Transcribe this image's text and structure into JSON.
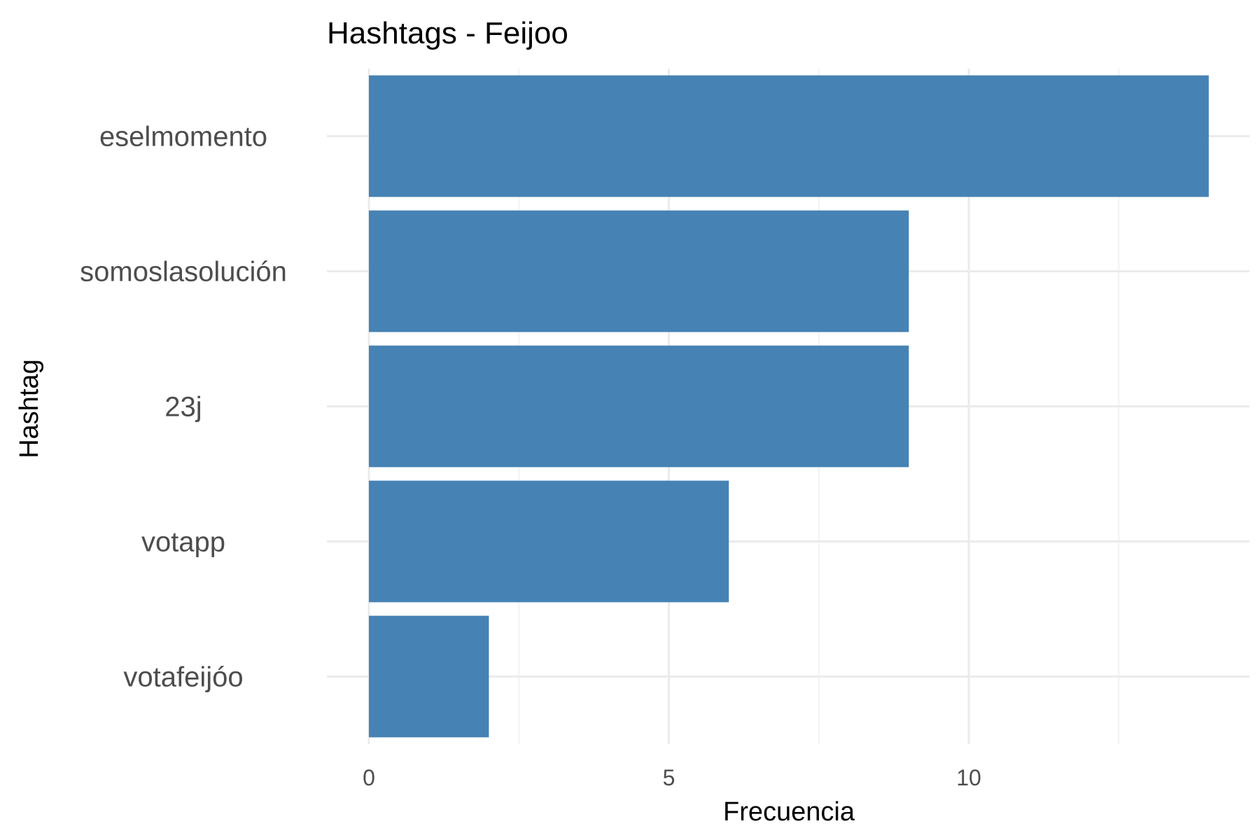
{
  "chart_data": {
    "type": "bar",
    "orientation": "horizontal",
    "title": "Hashtags - Feijoo",
    "xlabel": "Frecuencia",
    "ylabel": "Hashtag",
    "categories": [
      "eselmomento",
      "somoslasolución",
      "23j",
      "votapp",
      "votafeijóo"
    ],
    "values": [
      14,
      9,
      9,
      6,
      2
    ],
    "xlim": [
      0,
      14.7
    ],
    "xticks": [
      0,
      5,
      10
    ],
    "grid": true,
    "bar_color": "#4682B4"
  }
}
